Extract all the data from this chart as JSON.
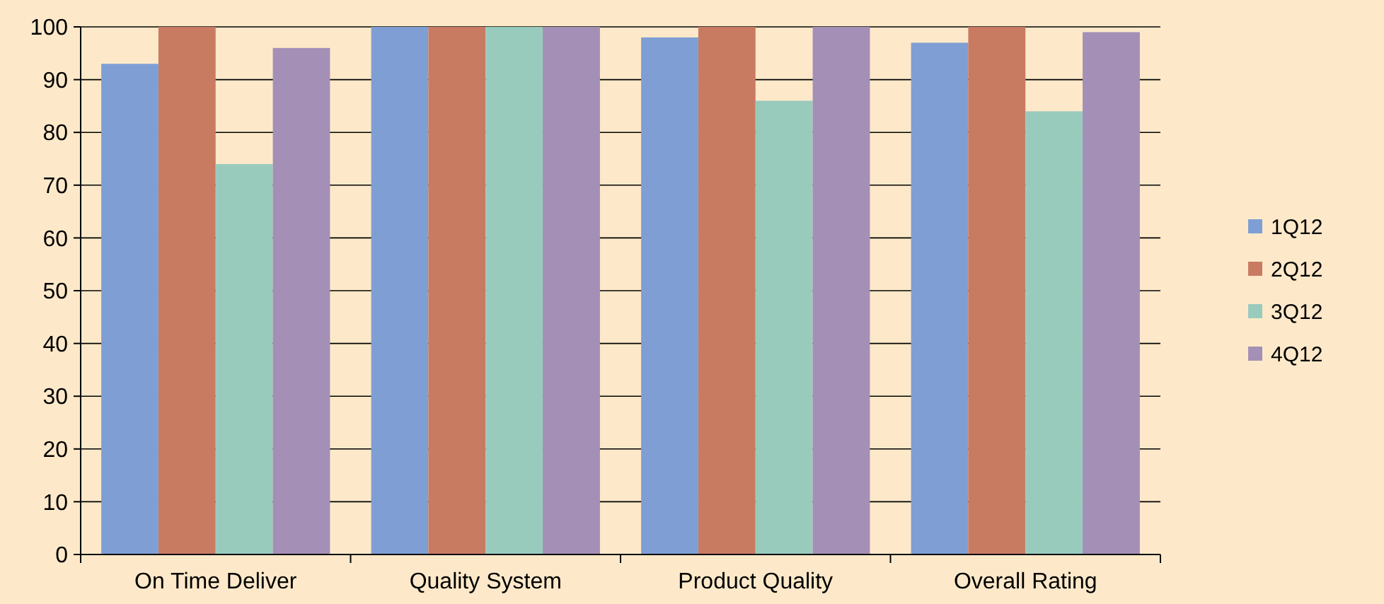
{
  "chart_data": {
    "type": "bar",
    "categories": [
      "On Time Deliver",
      "Quality System",
      "Product Quality",
      "Overall Rating"
    ],
    "series": [
      {
        "name": "1Q12",
        "color": "#7f9fd4",
        "values": [
          93,
          100,
          98,
          97
        ]
      },
      {
        "name": "2Q12",
        "color": "#c97b62",
        "values": [
          100,
          100,
          100,
          100
        ]
      },
      {
        "name": "3Q12",
        "color": "#99cbbd",
        "values": [
          74,
          100,
          86,
          84
        ]
      },
      {
        "name": "4Q12",
        "color": "#a48fb6",
        "values": [
          96,
          100,
          100,
          99
        ]
      }
    ],
    "ylim": [
      0,
      100
    ],
    "yticks": [
      0,
      10,
      20,
      30,
      40,
      50,
      60,
      70,
      80,
      90,
      100
    ],
    "grid": "y",
    "legend": "right"
  }
}
